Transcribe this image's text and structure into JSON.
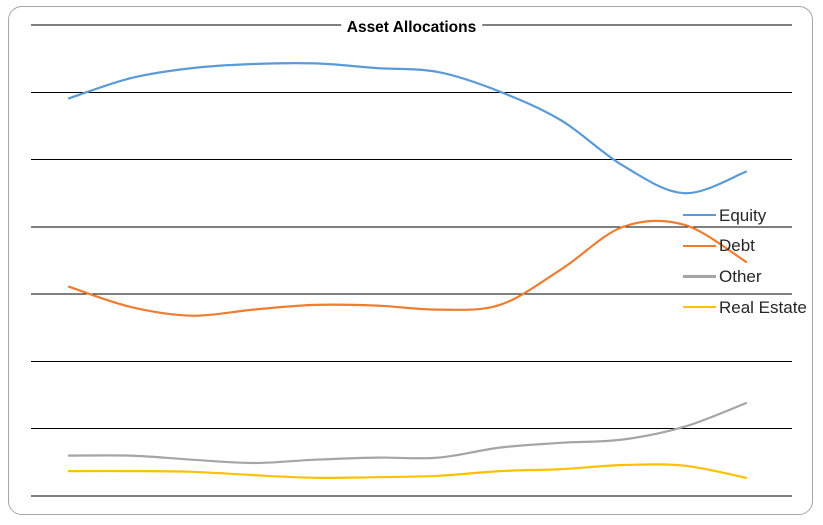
{
  "window": {
    "background_color": "#ffffff",
    "frame_border_color": "#a6a6a6"
  },
  "chart_data": {
    "type": "line",
    "title": "Asset Allocations",
    "line_style": "smooth",
    "categories": null,
    "x_axis_labels_visible": false,
    "y_axis_labels_visible": false,
    "num_points": 12,
    "ylim": [
      0,
      70
    ],
    "gridline_step": 10,
    "grid": "horizontal",
    "gridline_color": "#000000",
    "legend_position": "right",
    "legend_entries": [
      "Equity",
      "Debt",
      "Other",
      "Real Estate"
    ],
    "series": [
      {
        "name": "Equity",
        "color": "#5b9bd5",
        "values": [
          59.1,
          62.1,
          63.6,
          64.2,
          64.3,
          63.6,
          63.0,
          60.1,
          55.8,
          49.1,
          45.0,
          48.2
        ]
      },
      {
        "name": "Debt",
        "color": "#ed7d31",
        "values": [
          31.1,
          28.1,
          26.8,
          27.7,
          28.4,
          28.3,
          27.7,
          28.4,
          33.7,
          40.0,
          40.3,
          34.8
        ]
      },
      {
        "name": "Other",
        "color": "#a5a5a5",
        "values": [
          6.0,
          6.0,
          5.4,
          4.9,
          5.4,
          5.7,
          5.7,
          7.2,
          7.9,
          8.4,
          10.3,
          13.8
        ]
      },
      {
        "name": "Real Estate",
        "color": "#ffc000",
        "values": [
          3.7,
          3.7,
          3.6,
          3.1,
          2.7,
          2.8,
          3.0,
          3.7,
          4.0,
          4.6,
          4.5,
          2.7
        ]
      }
    ]
  }
}
